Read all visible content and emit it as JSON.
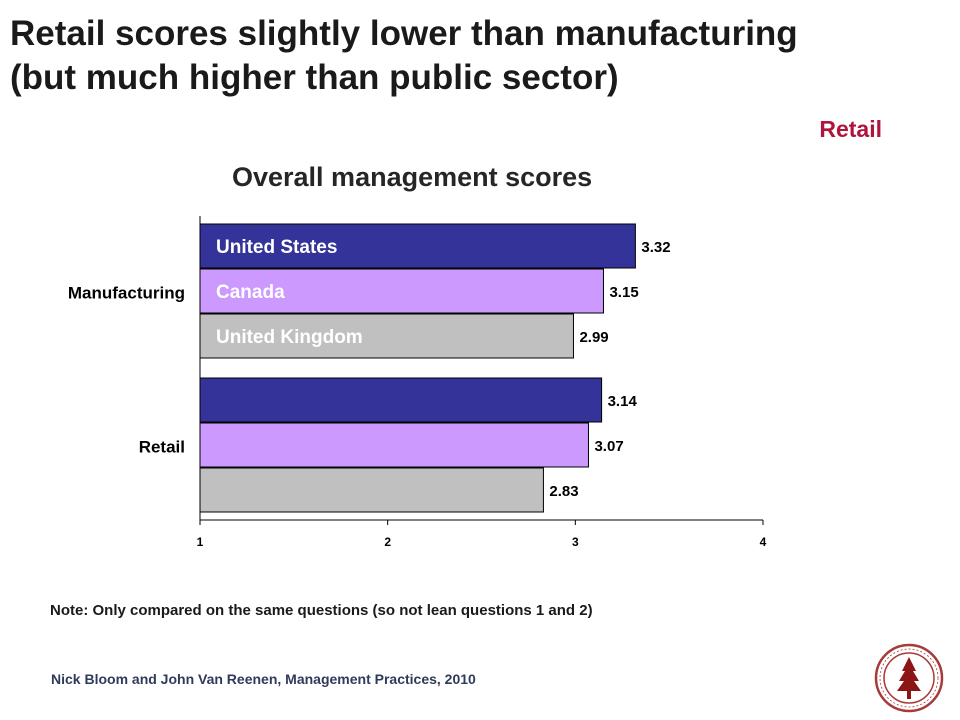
{
  "slide": {
    "title_line1": "Retail scores slightly lower than manufacturing",
    "title_line2": "(but much higher than public sector)",
    "section_tag": "Retail",
    "note": "Note: Only compared on the same questions (so not lean questions 1 and 2)",
    "source": "Nick Bloom and John Van Reenen, Management Practices, 2010"
  },
  "chart_data": {
    "type": "bar",
    "orientation": "horizontal",
    "title": "Overall management scores",
    "categories": [
      "Manufacturing",
      "Retail"
    ],
    "series": [
      {
        "name": "United States",
        "color": "#333399",
        "values": [
          3.32,
          3.14
        ],
        "value_labels": [
          "3.32",
          "3.14"
        ]
      },
      {
        "name": "Canada",
        "color": "#cc99ff",
        "values": [
          3.15,
          3.07
        ],
        "value_labels": [
          "3.15",
          "3.07"
        ]
      },
      {
        "name": "United Kingdom",
        "color": "#c0c0c0",
        "values": [
          2.99,
          2.83
        ],
        "value_labels": [
          "2.99",
          "2.83"
        ]
      }
    ],
    "xlim": [
      1,
      4
    ],
    "xticks": [
      1,
      2,
      3,
      4
    ],
    "xtick_labels": [
      "1",
      "2",
      "3",
      "4"
    ],
    "grid": false,
    "legend": "series names printed inside the first category's bars"
  }
}
